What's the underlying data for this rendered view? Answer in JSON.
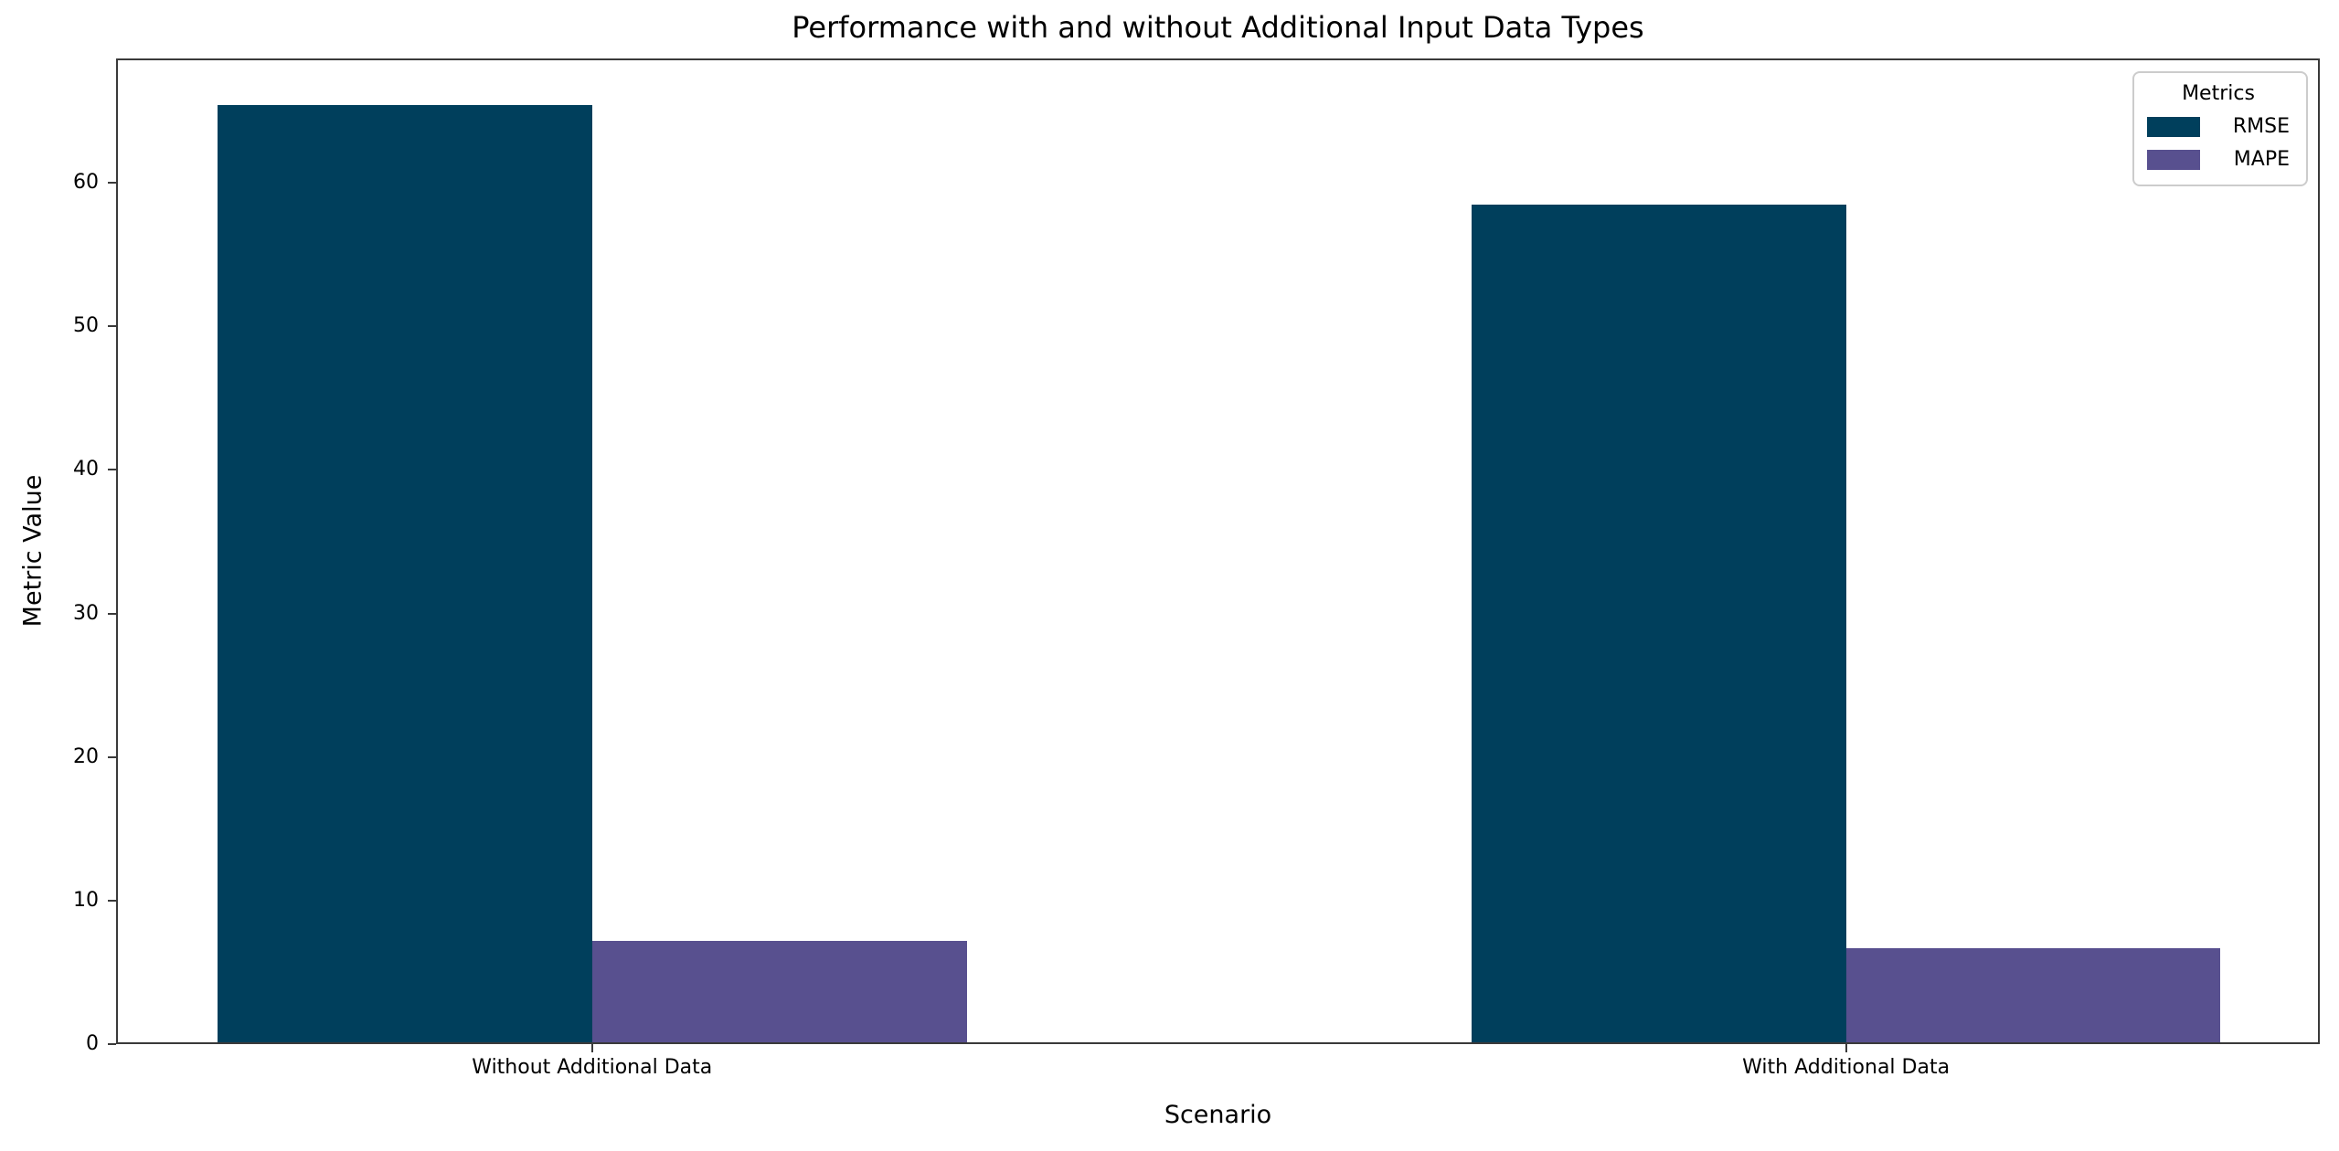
{
  "chart_data": {
    "type": "bar",
    "title": "Performance with and without Additional Input Data Types",
    "xlabel": "Scenario",
    "ylabel": "Metric Value",
    "categories": [
      "Without Additional Data",
      "With Additional Data"
    ],
    "series": [
      {
        "name": "RMSE",
        "color": "#003f5c",
        "values": [
          65.4,
          58.5
        ]
      },
      {
        "name": "MAPE",
        "color": "#58508f",
        "values": [
          7.2,
          6.7
        ]
      }
    ],
    "yticks": [
      0,
      10,
      20,
      30,
      40,
      50,
      60
    ],
    "ylim": [
      0,
      68.67
    ],
    "grid": false,
    "legend": {
      "title": "Metrics",
      "position": "upper right"
    },
    "layout": {
      "group_center_fractions": [
        0.216,
        0.785
      ],
      "bar_width_fraction": 0.17
    }
  }
}
